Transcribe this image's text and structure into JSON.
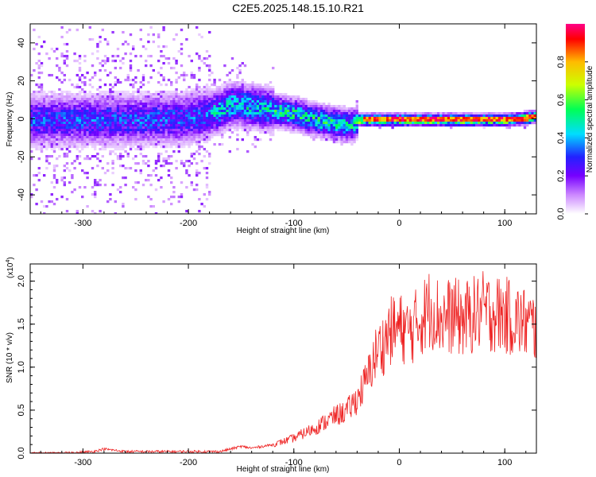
{
  "title": "C2E5.2025.148.15.10.R21",
  "chart_data": [
    {
      "type": "heatmap",
      "xlabel": "Height of straight line (km)",
      "ylabel": "Frequency (Hz)",
      "xlim": [
        -350,
        130
      ],
      "ylim": [
        -50,
        50
      ],
      "x_ticks": [
        -300,
        -200,
        -100,
        0,
        100
      ],
      "y_ticks": [
        -40,
        -20,
        0,
        20,
        40
      ],
      "colorbar": {
        "label": "Normalized spectral amplitude",
        "range": [
          0,
          1
        ],
        "ticks": [
          "0.0",
          "0.2",
          "0.4",
          "0.6",
          "0.8"
        ],
        "colors": [
          "#ffffff",
          "#cc88ff",
          "#7700ff",
          "#2222ff",
          "#00ddff",
          "#00ff55",
          "#ccff00",
          "#ffbb00",
          "#ff0000",
          "#ff0088"
        ]
      },
      "ridge": {
        "x": [
          -350,
          -300,
          -250,
          -200,
          -180,
          -160,
          -140,
          -120,
          -100,
          -80,
          -60,
          -45,
          -40,
          -30,
          -20,
          0,
          20,
          40,
          60,
          80,
          100,
          120,
          130
        ],
        "freq_hz": [
          0,
          0,
          0,
          1,
          3,
          8,
          7,
          5,
          3,
          0,
          -2,
          -3,
          0,
          0,
          0,
          0,
          0,
          0,
          0,
          0,
          0,
          1,
          2
        ]
      }
    },
    {
      "type": "line",
      "xlabel": "Height of straight line (km)",
      "ylabel": "SNR (10 * v/v)",
      "y_exponent": "(x10",
      "y_exponent_power": "4",
      "y_exponent_close": ")",
      "xlim": [
        -350,
        130
      ],
      "ylim": [
        0,
        2.2
      ],
      "x_ticks": [
        -300,
        -200,
        -100,
        0,
        100
      ],
      "y_ticks": [
        "0.0",
        "0.5",
        "1.0",
        "1.5",
        "2.0"
      ],
      "line_color": "#ee2222",
      "series": [
        {
          "x": [
            -350,
            -320,
            -290,
            -280,
            -260,
            -200,
            -170,
            -160,
            -150,
            -140,
            -120,
            -100,
            -80,
            -60,
            -50,
            -40,
            -30,
            -25,
            -20,
            -15,
            -10,
            0,
            10,
            20,
            30,
            40,
            50,
            60,
            80,
            100,
            110,
            120,
            130
          ],
          "y": [
            0.0,
            0.0,
            0.02,
            0.05,
            0.02,
            0.02,
            0.02,
            0.05,
            0.08,
            0.06,
            0.1,
            0.18,
            0.3,
            0.45,
            0.5,
            0.65,
            0.9,
            1.1,
            1.25,
            1.3,
            1.45,
            1.5,
            1.45,
            1.6,
            1.75,
            1.6,
            1.65,
            1.6,
            1.7,
            1.65,
            1.6,
            1.55,
            1.5
          ]
        }
      ]
    }
  ]
}
